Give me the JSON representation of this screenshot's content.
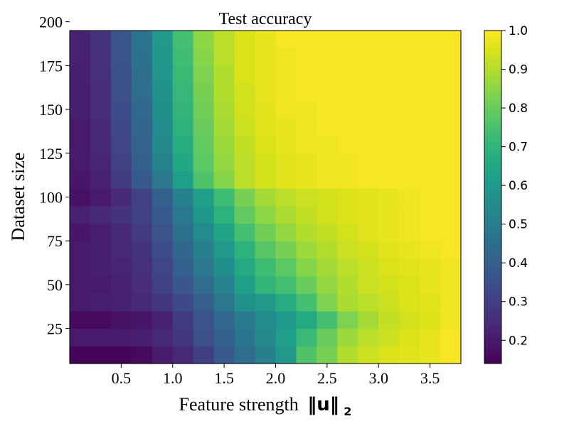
{
  "chart_data": {
    "type": "heatmap",
    "title": "Test accuracy",
    "xlabel": "Feature strength",
    "xlabel_math": "‖u‖",
    "xlabel_sub": "2",
    "ylabel": "Dataset size",
    "colormap": "viridis",
    "x": [
      0.1,
      0.3,
      0.5,
      0.7,
      0.9,
      1.1,
      1.3,
      1.5,
      1.7,
      1.9,
      2.1,
      2.3,
      2.5,
      2.7,
      2.9,
      3.1,
      3.3,
      3.5,
      3.7
    ],
    "y": [
      10,
      20,
      30,
      40,
      50,
      60,
      70,
      80,
      90,
      100,
      110,
      120,
      130,
      140,
      150,
      160,
      170,
      180,
      190
    ],
    "xlim": [
      0.0,
      3.8
    ],
    "ylim": [
      5,
      195
    ],
    "xticks": [
      0.5,
      1.0,
      1.5,
      2.0,
      2.5,
      3.0,
      3.5
    ],
    "xtick_labels": [
      "0.5",
      "1.0",
      "1.5",
      "2.0",
      "2.5",
      "3.0",
      "3.5"
    ],
    "yticks": [
      25,
      50,
      75,
      100,
      125,
      150,
      175,
      200
    ],
    "ytick_labels": [
      "25",
      "50",
      "75",
      "100",
      "125",
      "150",
      "175",
      "200"
    ],
    "colorbar": {
      "range": [
        0.14,
        1.0
      ],
      "ticks": [
        0.2,
        0.3,
        0.4,
        0.5,
        0.6,
        0.7,
        0.8,
        0.9,
        1.0
      ],
      "tick_labels": [
        "0.2",
        "0.3",
        "0.4",
        "0.5",
        "0.6",
        "0.7",
        "0.8",
        "0.9",
        "1.0"
      ]
    },
    "values": [
      [
        0.15,
        0.15,
        0.15,
        0.16,
        0.2,
        0.24,
        0.3,
        0.38,
        0.44,
        0.51,
        0.6,
        0.76,
        0.82,
        0.9,
        0.93,
        0.95,
        0.96,
        0.97,
        0.99
      ],
      [
        0.2,
        0.2,
        0.2,
        0.21,
        0.24,
        0.28,
        0.35,
        0.4,
        0.47,
        0.54,
        0.62,
        0.72,
        0.8,
        0.87,
        0.91,
        0.93,
        0.95,
        0.97,
        0.99
      ],
      [
        0.16,
        0.16,
        0.18,
        0.19,
        0.22,
        0.29,
        0.36,
        0.43,
        0.49,
        0.55,
        0.6,
        0.66,
        0.74,
        0.83,
        0.88,
        0.92,
        0.94,
        0.95,
        0.98
      ],
      [
        0.2,
        0.21,
        0.22,
        0.24,
        0.28,
        0.33,
        0.39,
        0.48,
        0.57,
        0.6,
        0.67,
        0.74,
        0.83,
        0.89,
        0.91,
        0.93,
        0.95,
        0.96,
        0.98
      ],
      [
        0.2,
        0.2,
        0.22,
        0.25,
        0.31,
        0.37,
        0.44,
        0.52,
        0.62,
        0.7,
        0.74,
        0.8,
        0.86,
        0.9,
        0.93,
        0.94,
        0.95,
        0.97,
        0.98
      ],
      [
        0.2,
        0.21,
        0.23,
        0.26,
        0.32,
        0.4,
        0.48,
        0.56,
        0.66,
        0.73,
        0.78,
        0.84,
        0.88,
        0.91,
        0.93,
        0.95,
        0.96,
        0.97,
        0.98
      ],
      [
        0.2,
        0.21,
        0.24,
        0.27,
        0.34,
        0.42,
        0.51,
        0.6,
        0.69,
        0.77,
        0.82,
        0.87,
        0.9,
        0.93,
        0.94,
        0.96,
        0.97,
        0.98,
        0.99
      ],
      [
        0.19,
        0.21,
        0.24,
        0.29,
        0.36,
        0.45,
        0.55,
        0.64,
        0.74,
        0.81,
        0.86,
        0.9,
        0.92,
        0.94,
        0.96,
        0.97,
        0.98,
        0.99,
        0.99
      ],
      [
        0.22,
        0.24,
        0.27,
        0.31,
        0.38,
        0.48,
        0.59,
        0.69,
        0.79,
        0.85,
        0.89,
        0.92,
        0.94,
        0.95,
        0.96,
        0.97,
        0.98,
        0.99,
        0.99
      ],
      [
        0.18,
        0.2,
        0.24,
        0.31,
        0.4,
        0.51,
        0.62,
        0.73,
        0.82,
        0.88,
        0.91,
        0.93,
        0.94,
        0.95,
        0.96,
        0.97,
        0.98,
        0.99,
        0.99
      ],
      [
        0.19,
        0.22,
        0.29,
        0.38,
        0.48,
        0.62,
        0.76,
        0.84,
        0.91,
        0.94,
        0.96,
        0.97,
        0.98,
        0.98,
        0.99,
        0.99,
        0.99,
        0.99,
        0.99
      ],
      [
        0.2,
        0.23,
        0.31,
        0.4,
        0.52,
        0.65,
        0.78,
        0.86,
        0.91,
        0.94,
        0.96,
        0.97,
        0.98,
        0.98,
        0.99,
        0.99,
        0.99,
        0.99,
        0.99
      ],
      [
        0.2,
        0.24,
        0.32,
        0.41,
        0.54,
        0.67,
        0.79,
        0.87,
        0.92,
        0.95,
        0.97,
        0.98,
        0.98,
        0.99,
        0.99,
        0.99,
        0.99,
        0.99,
        0.99
      ],
      [
        0.2,
        0.24,
        0.33,
        0.42,
        0.55,
        0.69,
        0.8,
        0.88,
        0.93,
        0.96,
        0.97,
        0.98,
        0.99,
        0.99,
        0.99,
        0.99,
        0.99,
        0.99,
        0.99
      ],
      [
        0.21,
        0.25,
        0.34,
        0.43,
        0.56,
        0.7,
        0.81,
        0.89,
        0.94,
        0.96,
        0.98,
        0.98,
        0.99,
        0.99,
        0.99,
        0.99,
        0.99,
        0.99,
        0.99
      ],
      [
        0.21,
        0.25,
        0.35,
        0.44,
        0.57,
        0.71,
        0.82,
        0.9,
        0.94,
        0.97,
        0.98,
        0.99,
        0.99,
        0.99,
        0.99,
        0.99,
        0.99,
        0.99,
        0.99
      ],
      [
        0.21,
        0.26,
        0.35,
        0.45,
        0.58,
        0.72,
        0.83,
        0.9,
        0.95,
        0.97,
        0.98,
        0.99,
        0.99,
        0.99,
        0.99,
        0.99,
        0.99,
        0.99,
        0.99
      ],
      [
        0.22,
        0.26,
        0.36,
        0.46,
        0.59,
        0.73,
        0.84,
        0.91,
        0.95,
        0.97,
        0.98,
        0.99,
        0.99,
        0.99,
        0.99,
        0.99,
        0.99,
        0.99,
        0.99
      ],
      [
        0.22,
        0.27,
        0.37,
        0.47,
        0.6,
        0.74,
        0.85,
        0.91,
        0.95,
        0.97,
        0.99,
        0.99,
        0.99,
        0.99,
        0.99,
        0.99,
        0.99,
        0.99,
        0.99
      ]
    ]
  }
}
